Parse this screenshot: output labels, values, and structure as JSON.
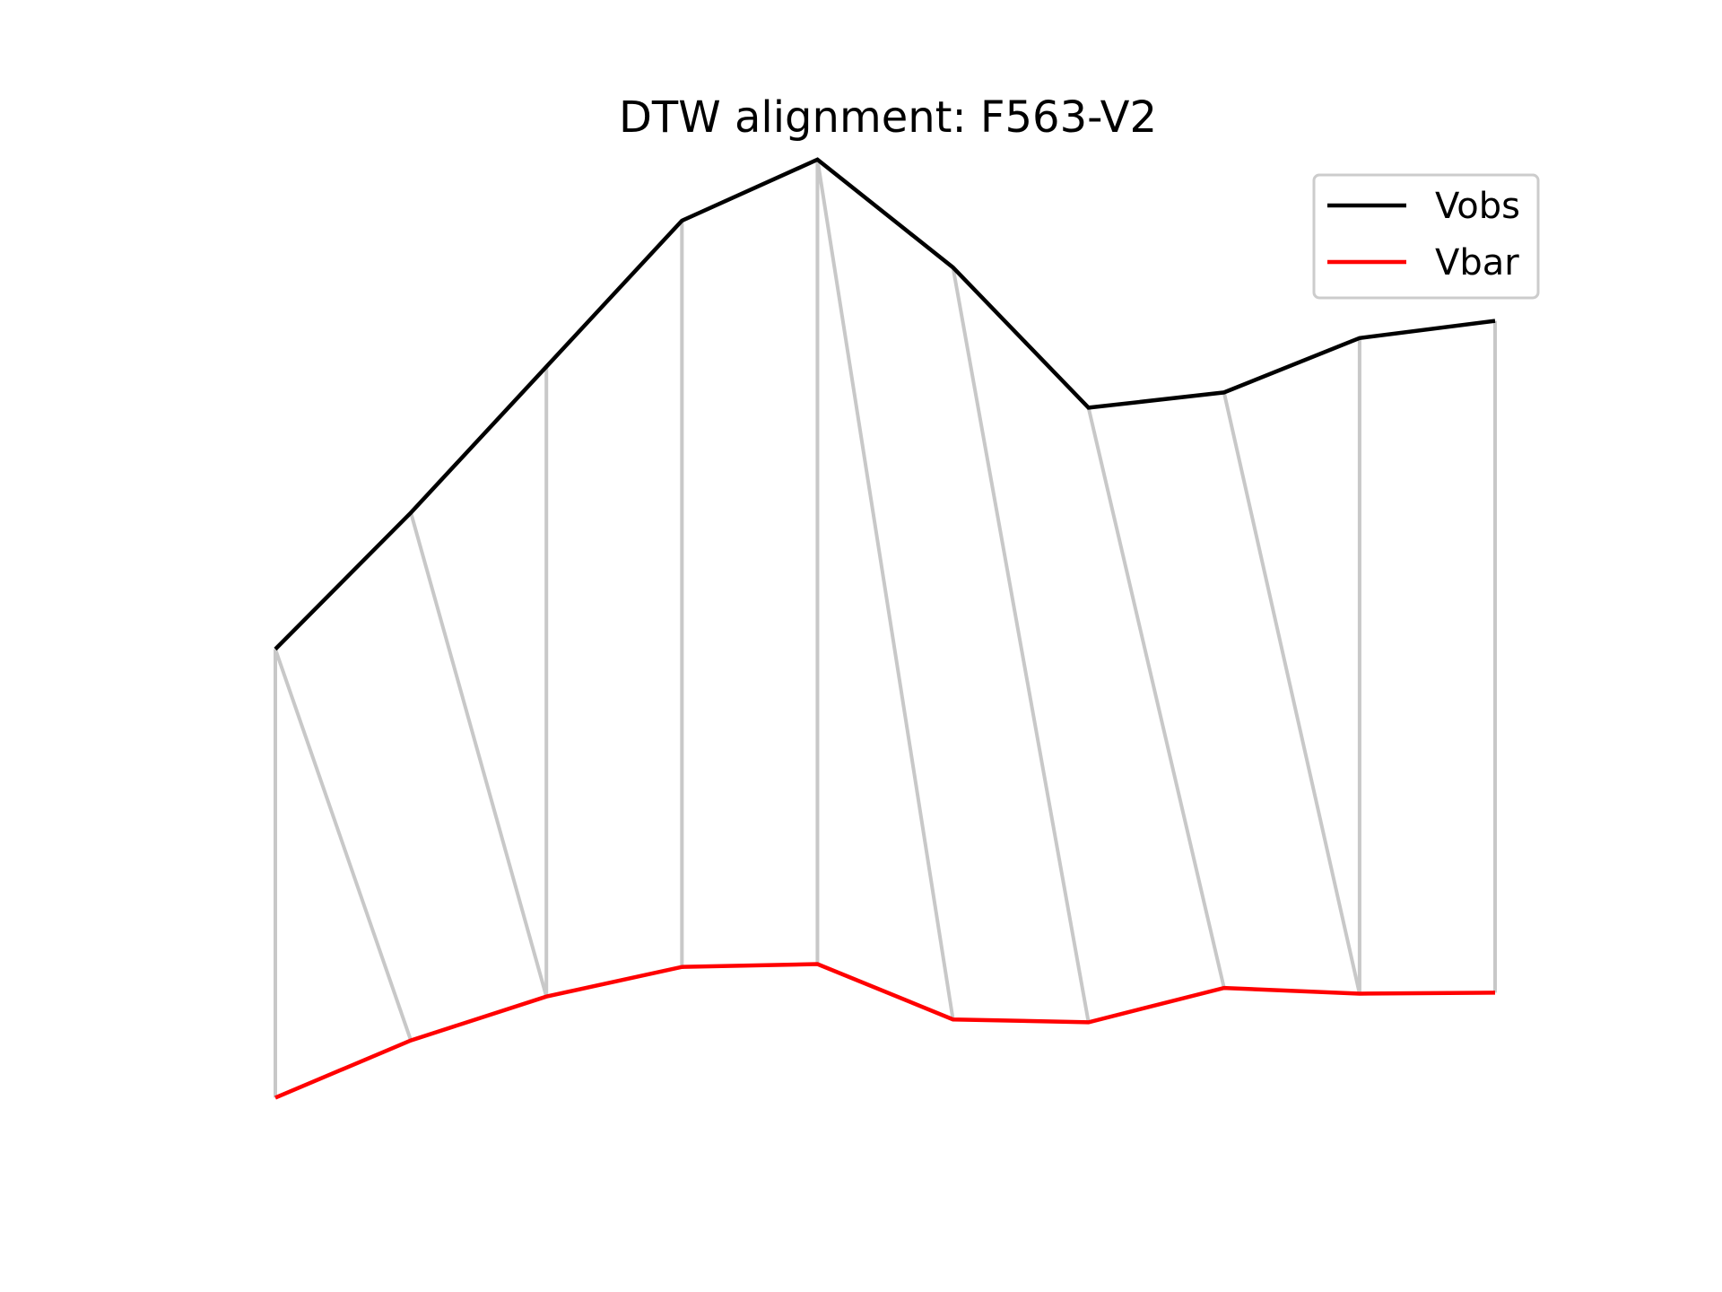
{
  "chart_data": {
    "type": "line",
    "title": "DTW alignment: F563-V2",
    "xlabel": "",
    "ylabel": "",
    "axes_visible": false,
    "grid": false,
    "legend_position": "top-right",
    "x": [
      0,
      1,
      2,
      3,
      4,
      5,
      6,
      7,
      8,
      9
    ],
    "series": [
      {
        "name": "Vobs",
        "color": "#000000",
        "values": [
          3.42,
          4.85,
          6.38,
          7.91,
          8.55,
          7.42,
          5.95,
          6.11,
          6.68,
          6.86
        ]
      },
      {
        "name": "Vbar",
        "color": "#ff0000",
        "values": [
          -1.28,
          -0.68,
          -0.22,
          0.09,
          0.12,
          -0.46,
          -0.49,
          -0.13,
          -0.19,
          -0.18
        ]
      }
    ],
    "alignment_color": "#c8c8c8",
    "alignment_pairs": [
      [
        0,
        0
      ],
      [
        0,
        1
      ],
      [
        1,
        2
      ],
      [
        2,
        2
      ],
      [
        3,
        3
      ],
      [
        4,
        4
      ],
      [
        4,
        5
      ],
      [
        5,
        6
      ],
      [
        6,
        7
      ],
      [
        7,
        8
      ],
      [
        8,
        8
      ],
      [
        9,
        9
      ]
    ]
  }
}
